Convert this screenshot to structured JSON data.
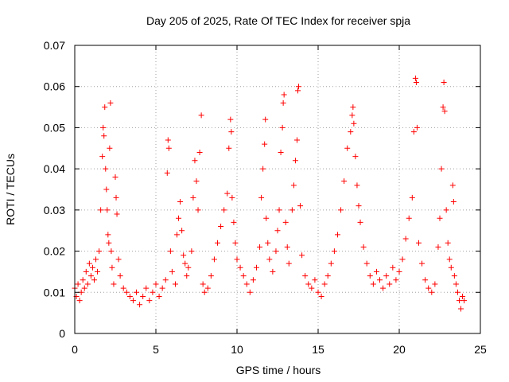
{
  "chart_data": {
    "type": "scatter",
    "title": "Day 205 of 2025, Rate Of TEC Index for receiver spja",
    "xlabel": "GPS time / hours",
    "ylabel": "ROTI / TECUs",
    "xlim": [
      0,
      25
    ],
    "ylim": [
      0,
      0.07
    ],
    "x_ticks": [
      0,
      5,
      10,
      15,
      20,
      25
    ],
    "x_tick_labels": [
      "0",
      "5",
      "10",
      "15",
      "20",
      "25"
    ],
    "y_ticks": [
      0,
      0.01,
      0.02,
      0.03,
      0.04,
      0.05,
      0.06,
      0.07
    ],
    "y_tick_labels": [
      "0",
      "0.01",
      "0.02",
      "0.03",
      "0.04",
      "0.05",
      "0.06",
      "0.07"
    ],
    "grid": true,
    "marker": "+",
    "color": "#ff0000",
    "series": [
      {
        "points": [
          [
            0.0,
            0.011
          ],
          [
            0.1,
            0.009
          ],
          [
            0.2,
            0.012
          ],
          [
            0.3,
            0.008
          ],
          [
            0.4,
            0.01
          ],
          [
            0.5,
            0.013
          ],
          [
            0.6,
            0.011
          ],
          [
            0.7,
            0.015
          ],
          [
            0.8,
            0.012
          ],
          [
            0.9,
            0.017
          ],
          [
            1.0,
            0.014
          ],
          [
            1.1,
            0.016
          ],
          [
            1.2,
            0.013
          ],
          [
            1.3,
            0.018
          ],
          [
            1.4,
            0.015
          ],
          [
            1.5,
            0.02
          ],
          [
            1.6,
            0.03
          ],
          [
            1.7,
            0.043
          ],
          [
            1.75,
            0.05
          ],
          [
            1.8,
            0.048
          ],
          [
            1.85,
            0.055
          ],
          [
            1.9,
            0.04
          ],
          [
            1.95,
            0.035
          ],
          [
            2.0,
            0.03
          ],
          [
            2.05,
            0.024
          ],
          [
            2.1,
            0.022
          ],
          [
            2.15,
            0.045
          ],
          [
            2.2,
            0.056
          ],
          [
            2.25,
            0.02
          ],
          [
            2.3,
            0.016
          ],
          [
            2.4,
            0.012
          ],
          [
            2.5,
            0.038
          ],
          [
            2.55,
            0.033
          ],
          [
            2.6,
            0.029
          ],
          [
            2.7,
            0.018
          ],
          [
            2.8,
            0.014
          ],
          [
            3.0,
            0.011
          ],
          [
            3.2,
            0.01
          ],
          [
            3.4,
            0.009
          ],
          [
            3.6,
            0.008
          ],
          [
            3.8,
            0.01
          ],
          [
            4.0,
            0.007
          ],
          [
            4.2,
            0.009
          ],
          [
            4.4,
            0.011
          ],
          [
            4.6,
            0.008
          ],
          [
            4.8,
            0.01
          ],
          [
            5.0,
            0.012
          ],
          [
            5.2,
            0.009
          ],
          [
            5.4,
            0.011
          ],
          [
            5.6,
            0.013
          ],
          [
            5.7,
            0.039
          ],
          [
            5.75,
            0.047
          ],
          [
            5.8,
            0.045
          ],
          [
            5.9,
            0.02
          ],
          [
            6.0,
            0.015
          ],
          [
            6.2,
            0.012
          ],
          [
            6.3,
            0.024
          ],
          [
            6.4,
            0.028
          ],
          [
            6.5,
            0.032
          ],
          [
            6.6,
            0.025
          ],
          [
            6.7,
            0.019
          ],
          [
            6.8,
            0.017
          ],
          [
            6.9,
            0.014
          ],
          [
            7.0,
            0.016
          ],
          [
            7.2,
            0.02
          ],
          [
            7.3,
            0.033
          ],
          [
            7.4,
            0.042
          ],
          [
            7.5,
            0.037
          ],
          [
            7.6,
            0.03
          ],
          [
            7.7,
            0.044
          ],
          [
            7.8,
            0.053
          ],
          [
            7.9,
            0.012
          ],
          [
            8.0,
            0.01
          ],
          [
            8.2,
            0.011
          ],
          [
            8.4,
            0.014
          ],
          [
            8.6,
            0.018
          ],
          [
            8.8,
            0.022
          ],
          [
            9.0,
            0.026
          ],
          [
            9.2,
            0.03
          ],
          [
            9.4,
            0.034
          ],
          [
            9.5,
            0.045
          ],
          [
            9.6,
            0.052
          ],
          [
            9.65,
            0.049
          ],
          [
            9.7,
            0.033
          ],
          [
            9.8,
            0.027
          ],
          [
            9.9,
            0.022
          ],
          [
            10.0,
            0.018
          ],
          [
            10.2,
            0.016
          ],
          [
            10.4,
            0.014
          ],
          [
            10.6,
            0.012
          ],
          [
            10.8,
            0.01
          ],
          [
            11.0,
            0.013
          ],
          [
            11.2,
            0.016
          ],
          [
            11.4,
            0.021
          ],
          [
            11.5,
            0.033
          ],
          [
            11.6,
            0.04
          ],
          [
            11.7,
            0.046
          ],
          [
            11.75,
            0.052
          ],
          [
            11.8,
            0.028
          ],
          [
            11.9,
            0.022
          ],
          [
            12.0,
            0.018
          ],
          [
            12.2,
            0.015
          ],
          [
            12.4,
            0.02
          ],
          [
            12.5,
            0.025
          ],
          [
            12.6,
            0.03
          ],
          [
            12.7,
            0.044
          ],
          [
            12.8,
            0.05
          ],
          [
            12.85,
            0.056
          ],
          [
            12.9,
            0.058
          ],
          [
            13.0,
            0.027
          ],
          [
            13.1,
            0.021
          ],
          [
            13.2,
            0.017
          ],
          [
            13.4,
            0.03
          ],
          [
            13.5,
            0.036
          ],
          [
            13.6,
            0.042
          ],
          [
            13.7,
            0.047
          ],
          [
            13.75,
            0.059
          ],
          [
            13.8,
            0.06
          ],
          [
            13.9,
            0.031
          ],
          [
            14.0,
            0.019
          ],
          [
            14.2,
            0.014
          ],
          [
            14.4,
            0.012
          ],
          [
            14.6,
            0.011
          ],
          [
            14.8,
            0.013
          ],
          [
            15.0,
            0.01
          ],
          [
            15.2,
            0.009
          ],
          [
            15.4,
            0.012
          ],
          [
            15.6,
            0.014
          ],
          [
            15.8,
            0.017
          ],
          [
            16.0,
            0.02
          ],
          [
            16.2,
            0.024
          ],
          [
            16.4,
            0.03
          ],
          [
            16.6,
            0.037
          ],
          [
            16.8,
            0.045
          ],
          [
            17.0,
            0.049
          ],
          [
            17.1,
            0.053
          ],
          [
            17.15,
            0.055
          ],
          [
            17.2,
            0.051
          ],
          [
            17.3,
            0.043
          ],
          [
            17.4,
            0.036
          ],
          [
            17.5,
            0.031
          ],
          [
            17.6,
            0.027
          ],
          [
            17.8,
            0.021
          ],
          [
            18.0,
            0.017
          ],
          [
            18.2,
            0.014
          ],
          [
            18.4,
            0.012
          ],
          [
            18.6,
            0.015
          ],
          [
            18.8,
            0.013
          ],
          [
            19.0,
            0.011
          ],
          [
            19.2,
            0.014
          ],
          [
            19.4,
            0.012
          ],
          [
            19.6,
            0.016
          ],
          [
            19.8,
            0.013
          ],
          [
            20.0,
            0.015
          ],
          [
            20.2,
            0.018
          ],
          [
            20.4,
            0.023
          ],
          [
            20.6,
            0.028
          ],
          [
            20.8,
            0.033
          ],
          [
            20.9,
            0.049
          ],
          [
            21.0,
            0.062
          ],
          [
            21.05,
            0.061
          ],
          [
            21.1,
            0.05
          ],
          [
            21.2,
            0.022
          ],
          [
            21.4,
            0.017
          ],
          [
            21.6,
            0.013
          ],
          [
            21.8,
            0.011
          ],
          [
            22.0,
            0.01
          ],
          [
            22.2,
            0.012
          ],
          [
            22.4,
            0.021
          ],
          [
            22.5,
            0.028
          ],
          [
            22.6,
            0.04
          ],
          [
            22.7,
            0.055
          ],
          [
            22.75,
            0.061
          ],
          [
            22.8,
            0.054
          ],
          [
            22.9,
            0.03
          ],
          [
            23.0,
            0.022
          ],
          [
            23.1,
            0.018
          ],
          [
            23.2,
            0.016
          ],
          [
            23.3,
            0.036
          ],
          [
            23.35,
            0.032
          ],
          [
            23.4,
            0.014
          ],
          [
            23.5,
            0.012
          ],
          [
            23.6,
            0.01
          ],
          [
            23.7,
            0.008
          ],
          [
            23.8,
            0.006
          ],
          [
            23.9,
            0.009
          ],
          [
            24.0,
            0.008
          ]
        ]
      }
    ]
  }
}
